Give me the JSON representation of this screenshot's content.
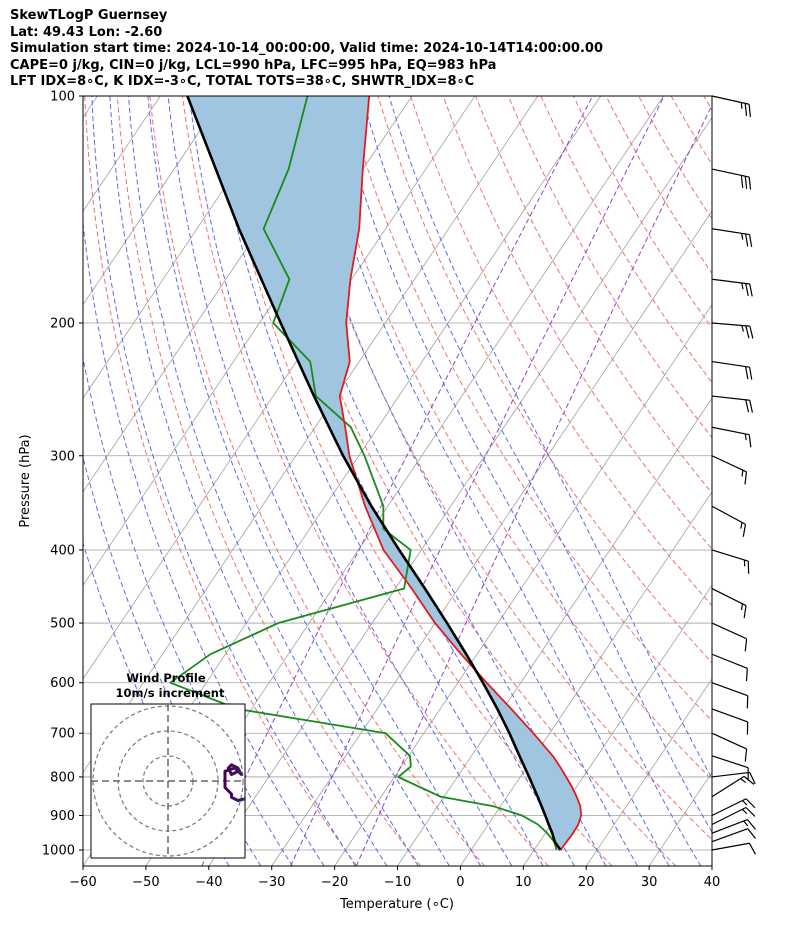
{
  "header": {
    "title": "SkewTLogP Guernsey",
    "location": "Lat: 49.43   Lon: -2.60",
    "times": "Simulation start time: 2024-10-14_00:00:00, Valid time: 2024-10-14T14:00:00.00",
    "indices1": "CAPE=0 j/kg, CIN=0 j/kg, LCL=990 hPa, LFC=995 hPa, EQ=983 hPa",
    "indices2": "LFT IDX=8∘C, K IDX=-3∘C, TOTAL TOTS=38∘C, SHWTR_IDX=8∘C"
  },
  "colors": {
    "temperature": "#e41a1c",
    "dewpoint": "#1a8a1a",
    "parcel": "#000000",
    "cape_fill": "#9fc5e0",
    "dry_adiabat": "#f07070",
    "moist_adiabat": "#5a6cf0",
    "mixing_ratio": "#9340c8",
    "isotherm": "#a0a0a0"
  },
  "chart_data": {
    "type": "line",
    "subtype": "skew-t log-p",
    "xlabel": "Temperature (∘C)",
    "ylabel": "Pressure (hPa)",
    "xlim": [
      -60,
      40
    ],
    "ylim": [
      1050,
      100
    ],
    "xticks": [
      "−60",
      "−50",
      "−40",
      "−30",
      "−20",
      "−10",
      "0",
      "10",
      "20",
      "30",
      "40"
    ],
    "xtick_values": [
      -60,
      -50,
      -40,
      -30,
      -20,
      -10,
      0,
      10,
      20,
      30,
      40
    ],
    "yticks": [
      1000,
      900,
      800,
      700,
      600,
      500,
      400,
      300,
      200,
      100
    ],
    "grid": true,
    "series": [
      {
        "name": "Temperature",
        "pressure": [
          1000,
          975,
          950,
          925,
          900,
          875,
          850,
          825,
          800,
          775,
          750,
          700,
          650,
          600,
          550,
          500,
          450,
          400,
          350,
          300,
          275,
          250,
          225,
          200,
          175,
          150,
          125,
          100
        ],
        "values": [
          14.2,
          14.3,
          14.4,
          14.3,
          13.8,
          12.7,
          11.1,
          9.3,
          7.3,
          5.2,
          2.9,
          -2.6,
          -8.7,
          -15.4,
          -22.5,
          -30.0,
          -37.4,
          -46.0,
          -53.6,
          -61.5,
          -65.2,
          -69.4,
          -71.5,
          -76.2,
          -80.2,
          -84.2,
          -90.0,
          -96.8
        ]
      },
      {
        "name": "Dewpoint",
        "pressure": [
          1000,
          975,
          950,
          925,
          900,
          875,
          850,
          800,
          775,
          750,
          700,
          650,
          600,
          550,
          500,
          450,
          400,
          375,
          350,
          300,
          275,
          250,
          225,
          200,
          175,
          150,
          125,
          100
        ],
        "values": [
          13.6,
          12.3,
          10.3,
          7.9,
          4.4,
          -1.1,
          -10.5,
          -19.4,
          -18.5,
          -19.8,
          -26.1,
          -52.2,
          -65.7,
          -62.4,
          -54.9,
          -38.6,
          -41.7,
          -48.3,
          -50.7,
          -59.1,
          -64.3,
          -73.2,
          -77.8,
          -87.8,
          -89.9,
          -99.4,
          -101.8,
          -106.6
        ]
      },
      {
        "name": "Parcel",
        "pressure": [
          1000,
          975,
          950,
          925,
          900,
          850,
          800,
          750,
          700,
          650,
          600,
          550,
          500,
          450,
          400,
          350,
          300,
          250,
          200,
          150,
          100
        ],
        "values": [
          14.2,
          12.4,
          11.1,
          9.6,
          8.1,
          4.9,
          1.4,
          -2.4,
          -6.4,
          -10.9,
          -16.0,
          -21.7,
          -28.1,
          -35.3,
          -43.5,
          -52.6,
          -62.5,
          -73.5,
          -86.6,
          -103.3,
          -125.7
        ]
      }
    ],
    "wind_barbs": [
      {
        "p": 1000,
        "u": -5.5,
        "v": -1.0
      },
      {
        "p": 975,
        "u": -6.0,
        "v": -2.2
      },
      {
        "p": 950,
        "u": -6.5,
        "v": -2.5
      },
      {
        "p": 925,
        "u": -6.0,
        "v": -3.0
      },
      {
        "p": 900,
        "u": -6.5,
        "v": -3.2
      },
      {
        "p": 850,
        "u": -5.5,
        "v": -3.5
      },
      {
        "p": 800,
        "u": -5.0,
        "v": -0.6
      },
      {
        "p": 750,
        "u": -5.5,
        "v": 1.8
      },
      {
        "p": 700,
        "u": -5.5,
        "v": 2.5
      },
      {
        "p": 650,
        "u": -5.5,
        "v": 2.0
      },
      {
        "p": 600,
        "u": -5.5,
        "v": 2.0
      },
      {
        "p": 550,
        "u": -5.5,
        "v": 2.2
      },
      {
        "p": 500,
        "u": -5.5,
        "v": 2.5
      },
      {
        "p": 450,
        "u": -6.0,
        "v": 3.0
      },
      {
        "p": 400,
        "u": -6.5,
        "v": 2.0
      },
      {
        "p": 350,
        "u": -6.5,
        "v": 3.5
      },
      {
        "p": 300,
        "u": -7.5,
        "v": 3.5
      },
      {
        "p": 275,
        "u": -7.5,
        "v": 1.5
      },
      {
        "p": 250,
        "u": -9.0,
        "v": 1.0
      },
      {
        "p": 225,
        "u": -10.0,
        "v": 1.5
      },
      {
        "p": 200,
        "u": -12.0,
        "v": 1.0
      },
      {
        "p": 175,
        "u": -12.0,
        "v": 1.5
      },
      {
        "p": 150,
        "u": -13.0,
        "v": 2.0
      },
      {
        "p": 125,
        "u": -14.0,
        "v": 3.0
      },
      {
        "p": 100,
        "u": -13.5,
        "v": 3.0
      }
    ],
    "hodograph": {
      "title": "Wind Profile",
      "subtitle": "10m/s increment",
      "ring_spacing_ms": 10,
      "u": [
        29.0,
        27.0,
        24.0,
        21.0,
        19.0,
        18.0,
        18.0,
        17.0,
        16.0,
        14.0,
        12.0,
        10.0,
        8.0,
        7.0,
        7.0,
        6.0,
        6.0,
        6.0,
        7.5,
        8.5,
        8.0,
        7.0,
        6.5,
        7.0,
        8.0
      ],
      "v": [
        3.0,
        0.5,
        0.0,
        0.0,
        -0.5,
        -2.5,
        -5.0,
        -5.0,
        -4.0,
        -2.0,
        -1.5,
        -2.5,
        -3.0,
        -2.5,
        -2.0,
        -1.0,
        0.5,
        1.5,
        2.0,
        1.0,
        2.0,
        2.5,
        2.0,
        1.0,
        1.5
      ]
    }
  }
}
